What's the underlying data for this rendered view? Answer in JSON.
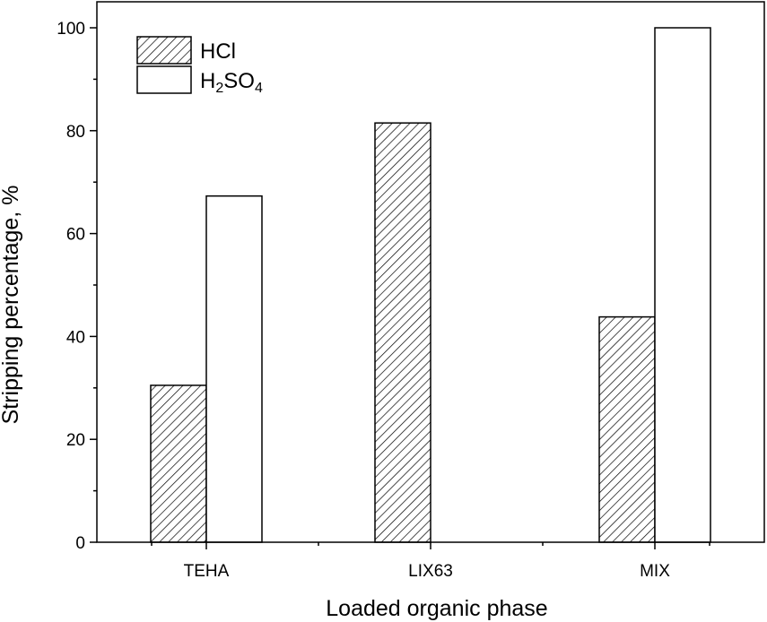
{
  "chart_data": {
    "type": "bar",
    "title": "",
    "xlabel": "Loaded organic phase",
    "ylabel": "Stripping percentage, %",
    "categories": [
      "TEHA",
      "LIX63",
      "MIX"
    ],
    "series": [
      {
        "name": "HCl",
        "values": [
          30.5,
          81.5,
          43.8
        ],
        "fill": "hatched"
      },
      {
        "name": "H2SO4",
        "values": [
          67.3,
          0,
          100
        ],
        "fill": "white"
      }
    ],
    "legend": {
      "position": "top-left",
      "entries": [
        {
          "main": "HCl"
        },
        {
          "parts": [
            {
              "t": "H",
              "sub": false
            },
            {
              "t": "2",
              "sub": true
            },
            {
              "t": "SO",
              "sub": false
            },
            {
              "t": "4",
              "sub": true
            }
          ]
        }
      ]
    },
    "ylim": [
      0,
      105
    ],
    "yticks": [
      0,
      20,
      40,
      60,
      80,
      100
    ],
    "grid": false,
    "colors": {
      "stroke": "#000000",
      "background": "#ffffff",
      "hatch": "#000000"
    }
  }
}
